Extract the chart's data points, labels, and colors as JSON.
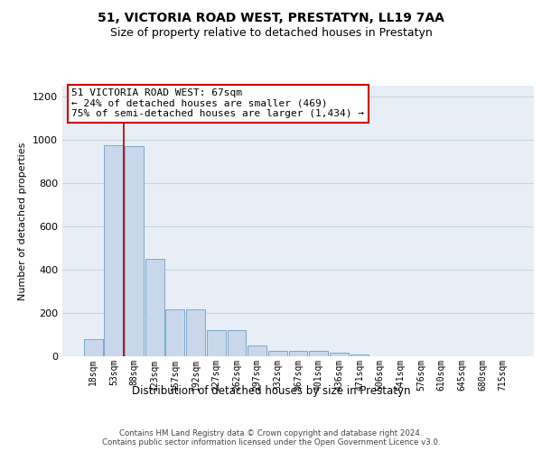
{
  "title": "51, VICTORIA ROAD WEST, PRESTATYN, LL19 7AA",
  "subtitle": "Size of property relative to detached houses in Prestatyn",
  "xlabel": "Distribution of detached houses by size in Prestatyn",
  "ylabel": "Number of detached properties",
  "categories": [
    "18sqm",
    "53sqm",
    "88sqm",
    "123sqm",
    "157sqm",
    "192sqm",
    "227sqm",
    "262sqm",
    "297sqm",
    "332sqm",
    "367sqm",
    "401sqm",
    "436sqm",
    "471sqm",
    "506sqm",
    "541sqm",
    "576sqm",
    "610sqm",
    "645sqm",
    "680sqm",
    "715sqm"
  ],
  "bar_values": [
    80,
    975,
    970,
    450,
    215,
    215,
    120,
    120,
    50,
    25,
    25,
    25,
    15,
    10,
    0,
    0,
    0,
    0,
    0,
    0,
    0
  ],
  "bar_color": "#c8d8ea",
  "bar_edge_color": "#7aaac8",
  "vline_color": "#aa0000",
  "vline_x": 1.5,
  "annotation_text": "51 VICTORIA ROAD WEST: 67sqm\n← 24% of detached houses are smaller (469)\n75% of semi-detached houses are larger (1,434) →",
  "annotation_box_color": "#ffffff",
  "annotation_box_edge": "#cc0000",
  "ylim": [
    0,
    1250
  ],
  "yticks": [
    0,
    200,
    400,
    600,
    800,
    1000,
    1200
  ],
  "plot_bg": "#e8eef5",
  "grid_color": "#c8d4e0",
  "title_fontsize": 10,
  "subtitle_fontsize": 9,
  "footer_line1": "Contains HM Land Registry data © Crown copyright and database right 2024.",
  "footer_line2": "Contains public sector information licensed under the Open Government Licence v3.0."
}
